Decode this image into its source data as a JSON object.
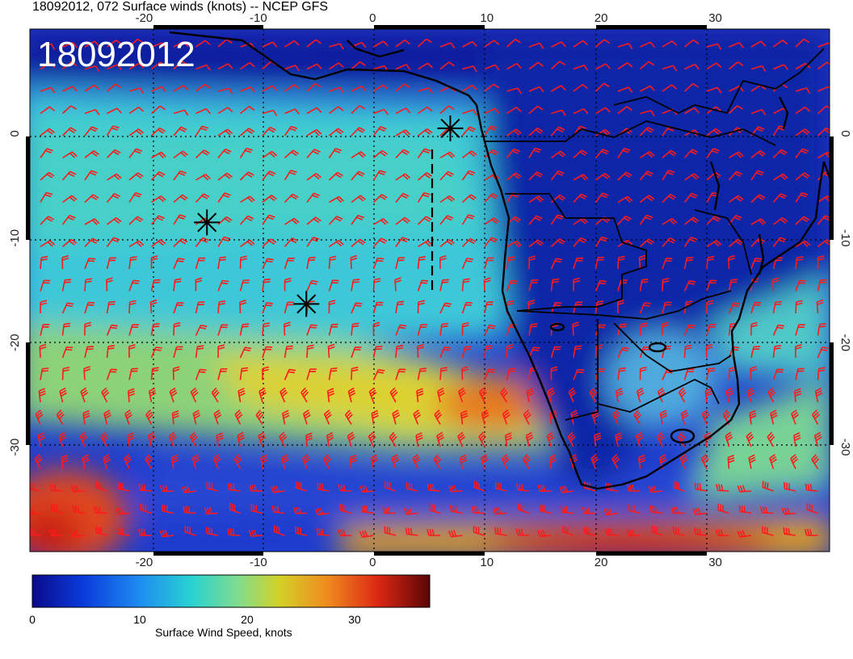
{
  "header": {
    "title": "18092012, 072 Surface winds (knots) -- NCEP GFS",
    "stamp": "18092012"
  },
  "map": {
    "lon_range": [
      -30,
      40
    ],
    "lat_range": [
      -40,
      10
    ],
    "lon_ticks": [
      "-20",
      "-10",
      "0",
      "10",
      "20",
      "30"
    ],
    "lat_ticks": [
      "0",
      "-10",
      "-20",
      "-30"
    ],
    "grid": "dotted",
    "barb_color": "#ff1a1a",
    "coast_color": "#000000",
    "markers": [
      {
        "name": "storm-marker-north",
        "lon": 6.8,
        "lat": 0.5
      },
      {
        "name": "storm-marker-west",
        "lon": -14.5,
        "lat": -8.5
      },
      {
        "name": "storm-marker-south",
        "lon": -5.8,
        "lat": -16.3
      }
    ]
  },
  "colorbar": {
    "label": "Surface Wind Speed, knots",
    "ticks": [
      "0",
      "10",
      "20",
      "30"
    ],
    "tick_values": [
      0,
      10,
      20,
      30
    ],
    "range": [
      0,
      37
    ],
    "colors": [
      "#0a0a8c",
      "#0a3cdc",
      "#1e8cf0",
      "#28d2d2",
      "#82dc8c",
      "#d2d228",
      "#f08c1e",
      "#dc2814",
      "#8c0a0a"
    ]
  }
}
